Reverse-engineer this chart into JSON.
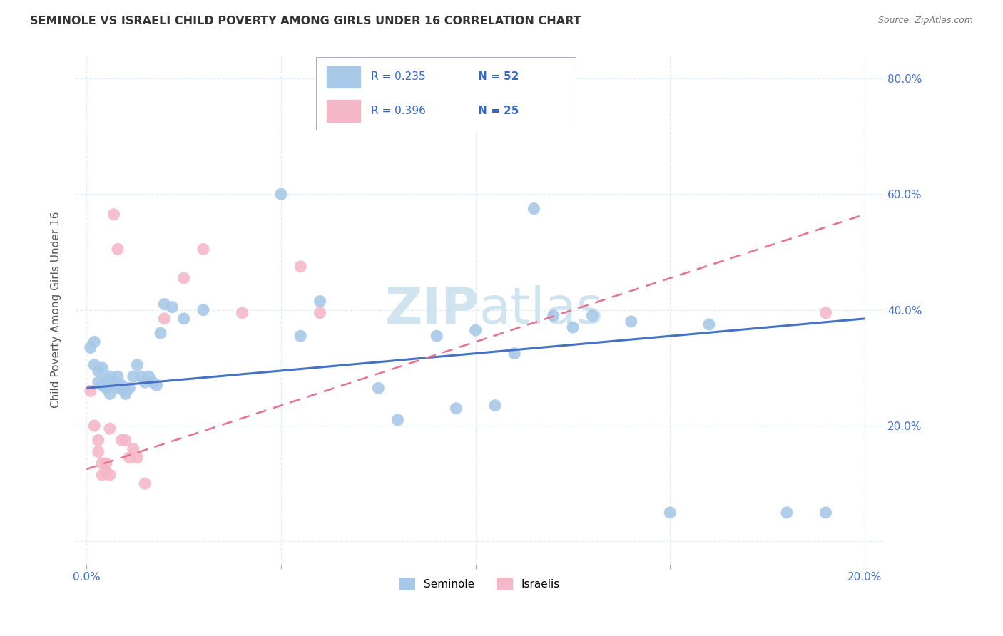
{
  "title": "SEMINOLE VS ISRAELI CHILD POVERTY AMONG GIRLS UNDER 16 CORRELATION CHART",
  "source": "Source: ZipAtlas.com",
  "ylabel": "Child Poverty Among Girls Under 16",
  "seminole_color": "#A8C8E8",
  "israelis_color": "#F4B8C8",
  "seminole_line_color": "#4472C4",
  "israelis_line_color": "#E87090",
  "watermark_color": "#D0E4F0",
  "legend_seminole_r": "R = 0.235",
  "legend_seminole_n": "N = 52",
  "legend_israelis_r": "R = 0.396",
  "legend_israelis_n": "N = 25",
  "seminole_x": [
    0.001,
    0.002,
    0.002,
    0.003,
    0.003,
    0.004,
    0.004,
    0.005,
    0.005,
    0.005,
    0.006,
    0.006,
    0.007,
    0.007,
    0.008,
    0.008,
    0.009,
    0.009,
    0.01,
    0.01,
    0.011,
    0.012,
    0.013,
    0.014,
    0.015,
    0.016,
    0.017,
    0.018,
    0.019,
    0.02,
    0.022,
    0.025,
    0.03,
    0.05,
    0.055,
    0.06,
    0.075,
    0.08,
    0.09,
    0.095,
    0.1,
    0.105,
    0.11,
    0.115,
    0.12,
    0.125,
    0.13,
    0.14,
    0.15,
    0.16,
    0.18,
    0.19
  ],
  "seminole_y": [
    0.335,
    0.305,
    0.345,
    0.295,
    0.275,
    0.27,
    0.3,
    0.265,
    0.27,
    0.28,
    0.285,
    0.255,
    0.27,
    0.275,
    0.265,
    0.285,
    0.27,
    0.265,
    0.255,
    0.26,
    0.265,
    0.285,
    0.305,
    0.285,
    0.275,
    0.285,
    0.275,
    0.27,
    0.36,
    0.41,
    0.405,
    0.385,
    0.4,
    0.6,
    0.355,
    0.415,
    0.265,
    0.21,
    0.355,
    0.23,
    0.365,
    0.235,
    0.325,
    0.575,
    0.39,
    0.37,
    0.39,
    0.38,
    0.05,
    0.375,
    0.05,
    0.05
  ],
  "israelis_x": [
    0.001,
    0.002,
    0.003,
    0.003,
    0.004,
    0.004,
    0.005,
    0.005,
    0.006,
    0.006,
    0.007,
    0.008,
    0.009,
    0.01,
    0.011,
    0.012,
    0.013,
    0.015,
    0.02,
    0.025,
    0.03,
    0.04,
    0.055,
    0.06,
    0.19
  ],
  "israelis_y": [
    0.26,
    0.2,
    0.155,
    0.175,
    0.135,
    0.115,
    0.12,
    0.135,
    0.115,
    0.195,
    0.565,
    0.505,
    0.175,
    0.175,
    0.145,
    0.16,
    0.145,
    0.1,
    0.385,
    0.455,
    0.505,
    0.395,
    0.475,
    0.395,
    0.395
  ],
  "seminole_trendline_x": [
    0.0,
    0.2
  ],
  "seminole_trendline_y": [
    0.265,
    0.385
  ],
  "israelis_trendline_x": [
    0.0,
    0.2
  ],
  "israelis_trendline_y": [
    0.125,
    0.565
  ],
  "xlim": [
    -0.003,
    0.205
  ],
  "ylim": [
    -0.04,
    0.84
  ],
  "xticks": [
    0.0,
    0.05,
    0.1,
    0.15,
    0.2
  ],
  "yticks_right": [
    0.2,
    0.4,
    0.6,
    0.8
  ],
  "grid_color": "#DDEEFF",
  "tick_label_color": "#4472C4"
}
